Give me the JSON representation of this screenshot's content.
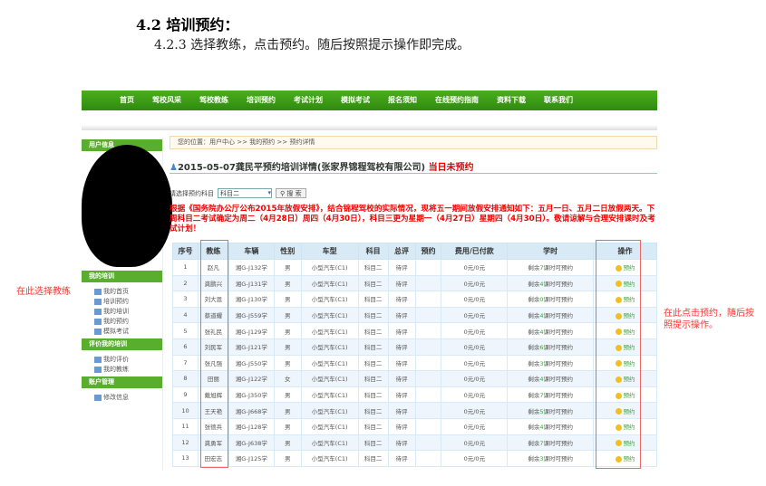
{
  "doc": {
    "heading": "4.2 培训预约：",
    "subheading": "4.2.3 选择教练，点击预约。随后按照提示操作即完成。"
  },
  "nav": [
    "首页",
    "驾校风采",
    "驾校教练",
    "培训预约",
    "考试计划",
    "模拟考试",
    "报名须知",
    "在线预约指南",
    "资料下载",
    "联系我们"
  ],
  "sidebar": {
    "user_header": "用户信息",
    "groups": [
      {
        "title": "我的培训",
        "items": [
          "我的首页",
          "培训预约",
          "我的培训",
          "我的预约",
          "模拟考试"
        ]
      },
      {
        "title": "评价我的培训",
        "items": [
          "我的评价",
          "我的教练"
        ]
      },
      {
        "title": "账户管理",
        "items": [
          "修改信息"
        ]
      }
    ]
  },
  "breadcrumb": "您的位置：用户中心 >> 我的预约 >> 预约详情",
  "title": "2015-05-07龚民平预约培训详情(张家界锦程驾校有限公司)",
  "title_status": "当日未预约",
  "search": {
    "label": "请选择预约科目",
    "selected": "科目二",
    "button": "搜 索"
  },
  "notice": "根据《国务院办公厅公布2015年放假安排》，结合锦程驾校的实际情况，现将五一期间放假安排通知如下：五月一日、五月二日放假两天。下周科目二考试确定为周二（4月28日）周四（4月30日），科目三更为星期一（4月27日）星期四（4月30日）。敬请谅解与合理安排课时及考试计划！",
  "table": {
    "headers": [
      "序号",
      "教练",
      "车辆",
      "性别",
      "车型",
      "科目",
      "总评",
      "预约",
      "费用/已付款",
      "学时",
      "操作"
    ],
    "rows": [
      [
        "1",
        "赵凡",
        "湘G-J132学",
        "男",
        "小型汽车(C1)",
        "科目二",
        "待评",
        "",
        "0元/0元",
        "7",
        "预约"
      ],
      [
        "2",
        "龚鹏兴",
        "湘G-J131学",
        "男",
        "小型汽车(C1)",
        "科目二",
        "待评",
        "",
        "0元/0元",
        "4",
        "预约"
      ],
      [
        "3",
        "刘大恩",
        "湘G-J130学",
        "男",
        "小型汽车(C1)",
        "科目二",
        "待评",
        "",
        "0元/0元",
        "0",
        "预约"
      ],
      [
        "4",
        "蔡道耀",
        "湘G-J559学",
        "男",
        "小型汽车(C1)",
        "科目二",
        "待评",
        "",
        "0元/0元",
        "4",
        "预约"
      ],
      [
        "5",
        "张礼民",
        "湘G-J129学",
        "男",
        "小型汽车(C1)",
        "科目二",
        "待评",
        "",
        "0元/0元",
        "4",
        "预约"
      ],
      [
        "6",
        "刘民军",
        "湘G-J121学",
        "男",
        "小型汽车(C1)",
        "科目二",
        "待评",
        "",
        "0元/0元",
        "6",
        "预约"
      ],
      [
        "7",
        "张凡强",
        "湘G-J550学",
        "男",
        "小型汽车(C1)",
        "科目二",
        "待评",
        "",
        "0元/0元",
        "3",
        "预约"
      ],
      [
        "8",
        "田丽",
        "湘G-J122学",
        "女",
        "小型汽车(C1)",
        "科目二",
        "待评",
        "",
        "0元/0元",
        "4",
        "预约"
      ],
      [
        "9",
        "戴旭辉",
        "湘G-J350学",
        "男",
        "小型汽车(C1)",
        "科目二",
        "待评",
        "",
        "0元/0元",
        "7",
        "预约"
      ],
      [
        "10",
        "王天艳",
        "湘G-J668学",
        "男",
        "小型汽车(C1)",
        "科目二",
        "待评",
        "",
        "0元/0元",
        "5",
        "预约"
      ],
      [
        "11",
        "张德兵",
        "湘G-J128学",
        "男",
        "小型汽车(C1)",
        "科目二",
        "待评",
        "",
        "0元/0元",
        "4",
        "预约"
      ],
      [
        "12",
        "龚勇军",
        "湘G-J638学",
        "男",
        "小型汽车(C1)",
        "科目二",
        "待评",
        "",
        "0元/0元",
        "7",
        "预约"
      ],
      [
        "13",
        "田宏志",
        "湘G-J125学",
        "男",
        "小型汽车(C1)",
        "科目二",
        "待评",
        "",
        "0元/0元",
        "3",
        "预约"
      ]
    ],
    "hours_prefix": "剩余",
    "hours_suffix": "课时可预约"
  },
  "annotations": {
    "coach": "在此选择教练",
    "action": "在此点击预约，随后按照提示操作。"
  },
  "colors": {
    "nav_green": "#3a9a16",
    "annotation_red": "#ff3333",
    "notice_red": "#e00000"
  }
}
